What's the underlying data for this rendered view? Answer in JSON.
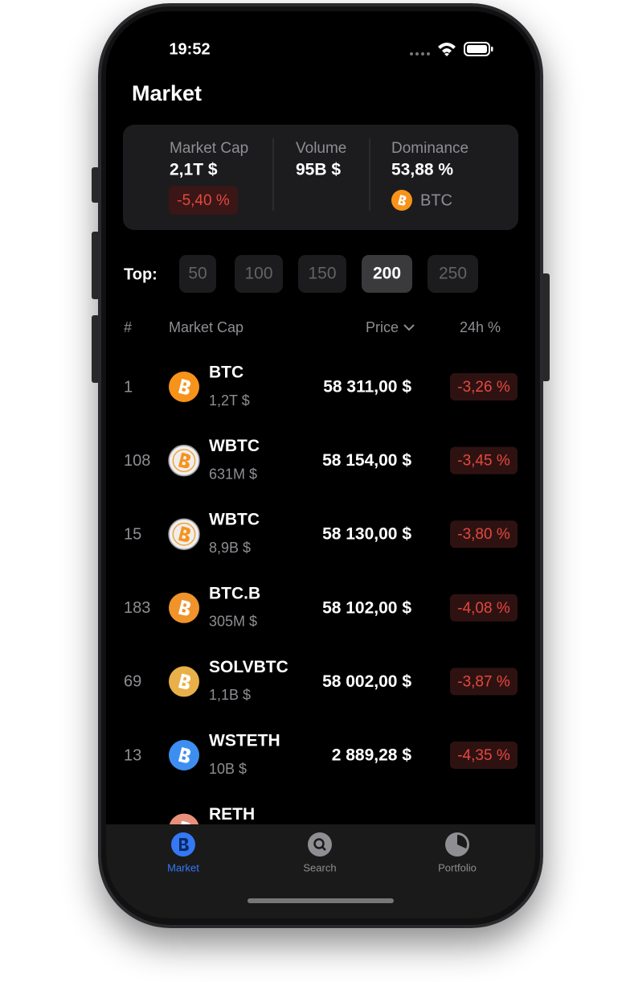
{
  "status_bar": {
    "time": "19:52"
  },
  "header": {
    "title": "Market"
  },
  "summary": {
    "market_cap": {
      "label": "Market Cap",
      "value": "2,1T $",
      "change": "-5,40 %"
    },
    "volume": {
      "label": "Volume",
      "value": "95B $"
    },
    "dominance": {
      "label": "Dominance",
      "value": "53,88 %",
      "coin": "BTC",
      "coin_color": "#f7931a"
    }
  },
  "top_filter": {
    "label": "Top:",
    "options": [
      "50",
      "100",
      "150",
      "200",
      "250"
    ],
    "selected": 3
  },
  "table": {
    "columns": [
      "#",
      "Market Cap",
      "Price",
      "24h %"
    ],
    "rows": [
      {
        "rank": "1",
        "symbol": "BTC",
        "market_cap": "1,2T $",
        "price": "58 311,00 $",
        "change": "-3,26 %",
        "icon_color": "#f7931a"
      },
      {
        "rank": "108",
        "symbol": "WBTC",
        "market_cap": "631M $",
        "price": "58 154,00 $",
        "change": "-3,45 %",
        "icon_color": "#eeeeee"
      },
      {
        "rank": "15",
        "symbol": "WBTC",
        "market_cap": "8,9B $",
        "price": "58 130,00 $",
        "change": "-3,80 %",
        "icon_color": "#eeeeee"
      },
      {
        "rank": "183",
        "symbol": "BTC.B",
        "market_cap": "305M $",
        "price": "58 102,00 $",
        "change": "-4,08 %",
        "icon_color": "#f0932b"
      },
      {
        "rank": "69",
        "symbol": "SOLVBTC",
        "market_cap": "1,1B $",
        "price": "58 002,00 $",
        "change": "-3,87 %",
        "icon_color": "#e9b04a"
      },
      {
        "rank": "13",
        "symbol": "WSTETH",
        "market_cap": "10B $",
        "price": "2 889,28 $",
        "change": "-4,35 %",
        "icon_color": "#3d8ef0"
      },
      {
        "symbol": "RETH",
        "icon_color": "#e8907a"
      }
    ]
  },
  "tab_bar": {
    "tabs": [
      "Market",
      "Search",
      "Portfolio"
    ],
    "active": 0
  }
}
